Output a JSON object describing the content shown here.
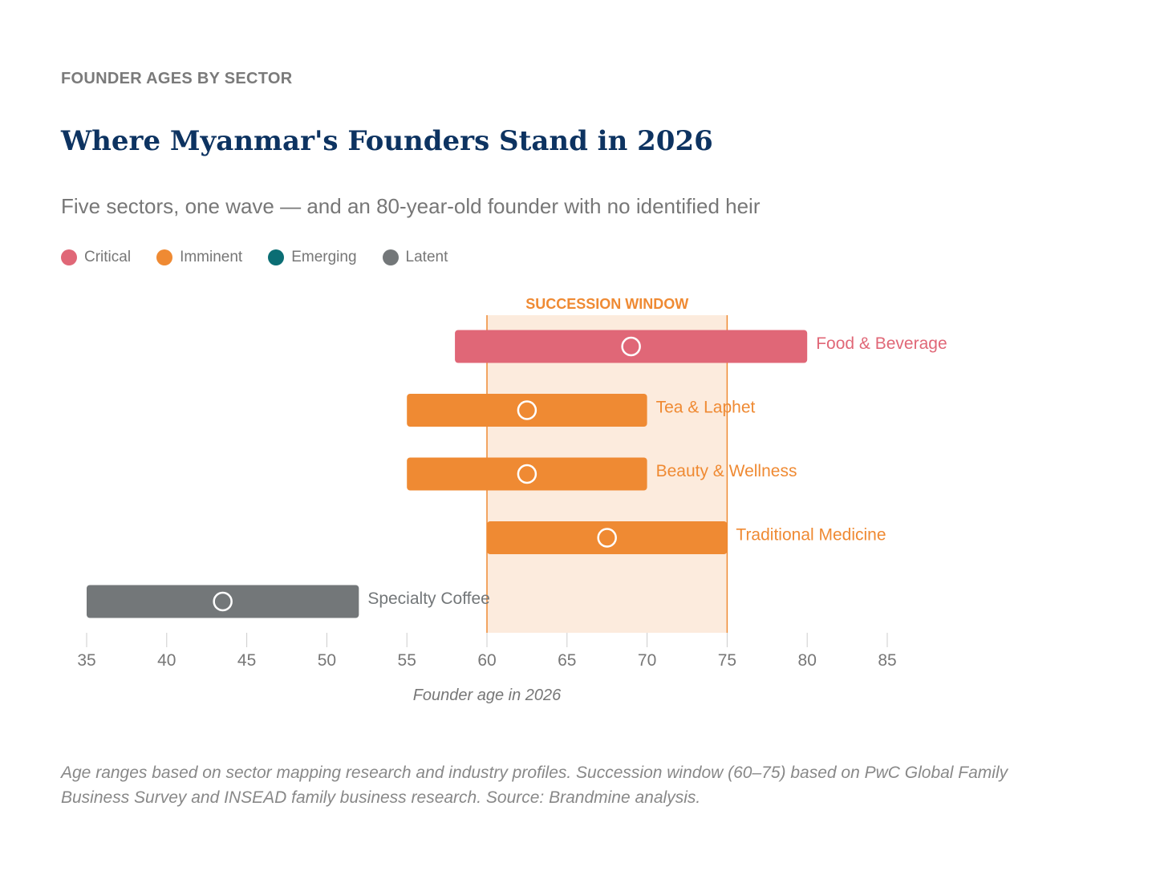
{
  "eyebrow": "FOUNDER AGES BY SECTOR",
  "title": "Where Myanmar's Founders Stand in 2026",
  "subtitle": "Five sectors, one wave — and an 80-year-old founder with no identified heir",
  "legend": [
    {
      "label": "Critical",
      "color": "#e06777"
    },
    {
      "label": "Imminent",
      "color": "#ef8a33"
    },
    {
      "label": "Emerging",
      "color": "#0b6e74"
    },
    {
      "label": "Latent",
      "color": "#737779"
    }
  ],
  "note": "Age ranges based on sector mapping research and industry profiles. Succession window (60–75) based on PwC Global Family Business Survey and INSEAD family business research. Source: Brandmine analysis.",
  "chart_data": {
    "type": "bar",
    "subtype": "range",
    "xlabel": "Founder age in 2026",
    "xlim": [
      35,
      85
    ],
    "xticks": [
      35,
      40,
      45,
      50,
      55,
      60,
      65,
      70,
      75,
      80,
      85
    ],
    "grid": false,
    "band": {
      "label": "SUCCESSION WINDOW",
      "from": 60,
      "to": 75,
      "color": "#ef8a33",
      "fill": "#fcebdd"
    },
    "series": [
      {
        "category": "Food & Beverage",
        "min": 58,
        "max": 80,
        "marker": 69,
        "status": "Critical",
        "color": "#e06777"
      },
      {
        "category": "Tea & Laphet",
        "min": 55,
        "max": 70,
        "marker": 62.5,
        "status": "Imminent",
        "color": "#ef8a33"
      },
      {
        "category": "Beauty & Wellness",
        "min": 55,
        "max": 70,
        "marker": 62.5,
        "status": "Imminent",
        "color": "#ef8a33"
      },
      {
        "category": "Traditional Medicine",
        "min": 60,
        "max": 75,
        "marker": 67.5,
        "status": "Imminent",
        "color": "#ef8a33"
      },
      {
        "category": "Specialty Coffee",
        "min": 35,
        "max": 52,
        "marker": 43.5,
        "status": "Latent",
        "color": "#737779"
      }
    ]
  }
}
